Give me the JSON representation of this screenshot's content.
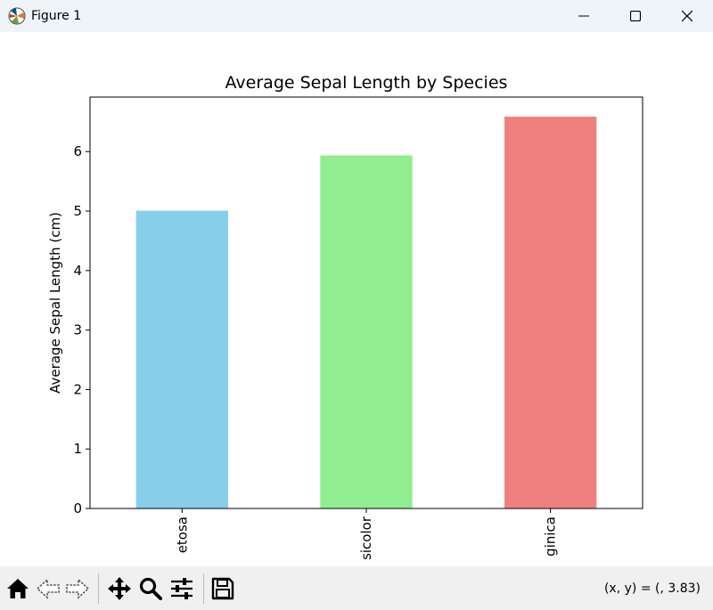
{
  "window": {
    "title": "Figure 1"
  },
  "toolbar": {
    "buttons": [
      "home-icon",
      "back-arrow-icon",
      "forward-arrow-icon",
      "pan-icon",
      "zoom-icon",
      "configure-subplots-icon",
      "save-icon"
    ],
    "coords_text": "(x, y) = (, 3.83)"
  },
  "chart_data": {
    "type": "bar",
    "title": "Average Sepal Length by Species",
    "xlabel": "",
    "ylabel": "Average Sepal Length (cm)",
    "categories": [
      "setosa",
      "versicolor",
      "virginica"
    ],
    "visible_tick_labels": [
      "etosa",
      "sicolor",
      "ginica"
    ],
    "values": [
      5.006,
      5.936,
      6.588
    ],
    "colors": [
      "#87ceeb",
      "#90ee90",
      "#f08080"
    ],
    "ylim": [
      0,
      6.917
    ],
    "yticks": [
      0,
      1,
      2,
      3,
      4,
      5,
      6
    ],
    "grid": false
  }
}
